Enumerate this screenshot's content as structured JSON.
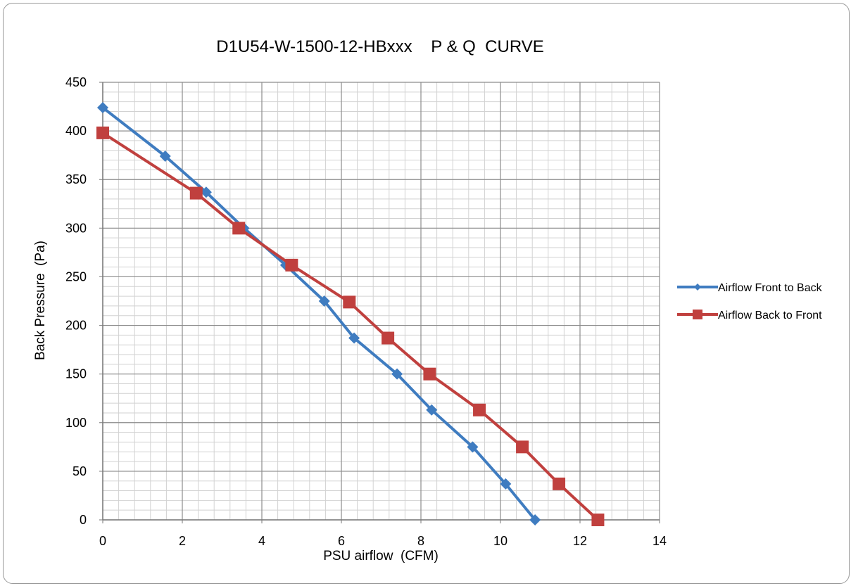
{
  "chart_data": {
    "type": "line",
    "title": "D1U54-W-1500-12-HBxxx    P & Q  CURVE",
    "xlabel": "PSU airflow  (CFM)",
    "ylabel": "Back Pressure  (Pa)",
    "xlim": [
      0,
      14
    ],
    "ylim": [
      0,
      450
    ],
    "x_major_step": 2,
    "y_major_step": 50,
    "x_minor_step": 0.4,
    "y_minor_step": 10,
    "grid": true,
    "legend_position": "right",
    "x_tick_labels": [
      "0",
      "2",
      "4",
      "6",
      "8",
      "10",
      "12",
      "14"
    ],
    "y_tick_labels": [
      "0",
      "50",
      "100",
      "150",
      "200",
      "250",
      "300",
      "350",
      "400",
      "450"
    ],
    "series": [
      {
        "name": "Airflow Front to Back",
        "color": "#3f7cc0",
        "marker": "diamond",
        "points": [
          [
            0,
            424
          ],
          [
            1.57,
            374
          ],
          [
            2.6,
            337
          ],
          [
            3.55,
            300
          ],
          [
            4.6,
            262
          ],
          [
            5.57,
            225
          ],
          [
            6.32,
            187
          ],
          [
            7.4,
            150
          ],
          [
            8.27,
            113
          ],
          [
            9.3,
            75
          ],
          [
            10.13,
            37
          ],
          [
            10.87,
            0
          ]
        ]
      },
      {
        "name": "Airflow Back to Front",
        "color": "#c0403e",
        "marker": "square",
        "points": [
          [
            0,
            398
          ],
          [
            2.35,
            336
          ],
          [
            3.42,
            300
          ],
          [
            4.75,
            262
          ],
          [
            6.2,
            224
          ],
          [
            7.17,
            187
          ],
          [
            8.22,
            150
          ],
          [
            9.47,
            113
          ],
          [
            10.55,
            75
          ],
          [
            11.47,
            37
          ],
          [
            12.45,
            0
          ]
        ]
      }
    ]
  }
}
